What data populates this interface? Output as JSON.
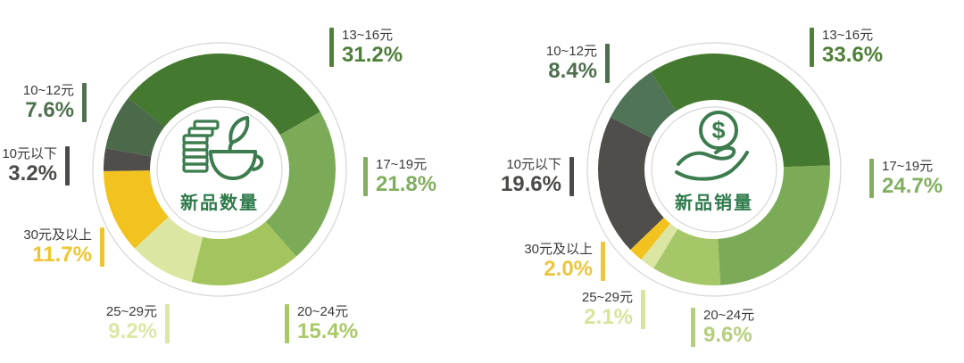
{
  "colors": {
    "background": "#ffffff",
    "ring_outline": "#d6d6d6",
    "icon_green": "#3C7C4E",
    "category_text": "#3A3A3A"
  },
  "chart_data": [
    {
      "type": "pie",
      "subtype": "donut",
      "title": "新品数量",
      "title_color": "#2E7A4B",
      "center_icon": "coins-teacup-icon",
      "direction": "clockwise",
      "start_angle_deg": -52,
      "unit": "percent",
      "segments": [
        {
          "label": "13~16元",
          "value_pct": 31.2,
          "display": "31.2%",
          "color": "#45792F",
          "label_color": "#4E8038"
        },
        {
          "label": "17~19元",
          "value_pct": 21.8,
          "display": "21.8%",
          "color": "#7CAB57",
          "label_color": "#82AF5F"
        },
        {
          "label": "20~24元",
          "value_pct": 15.4,
          "display": "15.4%",
          "color": "#A4C45E",
          "label_color": "#A9C966"
        },
        {
          "label": "25~29元",
          "value_pct": 9.2,
          "display": "9.2%",
          "color": "#DBE6A3",
          "label_color": "#DCE7A5"
        },
        {
          "label": "30元及以上",
          "value_pct": 11.7,
          "display": "11.7%",
          "color": "#F2C31E",
          "label_color": "#F0C52F"
        },
        {
          "label": "10元以下",
          "value_pct": 3.2,
          "display": "3.2%",
          "color": "#504E4B",
          "label_color": "#4C4B49"
        },
        {
          "label": "10~12元",
          "value_pct": 7.6,
          "display": "7.6%",
          "color": "#4B6A49",
          "label_color": "#50714F"
        }
      ]
    },
    {
      "type": "pie",
      "subtype": "donut",
      "title": "新品销量",
      "title_color": "#2E7A4B",
      "center_icon": "hand-coin-icon",
      "coin_symbol": "$",
      "direction": "clockwise",
      "start_angle_deg": -33,
      "unit": "percent",
      "segments": [
        {
          "label": "13~16元",
          "value_pct": 33.6,
          "display": "33.6%",
          "color": "#45792F",
          "label_color": "#4E8038"
        },
        {
          "label": "17~19元",
          "value_pct": 24.7,
          "display": "24.7%",
          "color": "#7CAB57",
          "label_color": "#82AF5F"
        },
        {
          "label": "20~24元",
          "value_pct": 9.6,
          "display": "9.6%",
          "color": "#A5C768",
          "label_color": "#B5CF7D"
        },
        {
          "label": "25~29元",
          "value_pct": 2.1,
          "display": "2.1%",
          "color": "#DBE6A3",
          "label_color": "#D8E49B"
        },
        {
          "label": "30元及以上",
          "value_pct": 2.0,
          "display": "2.0%",
          "color": "#F2C31E",
          "label_color": "#EEC63C"
        },
        {
          "label": "10元以下",
          "value_pct": 19.6,
          "display": "19.6%",
          "color": "#504E4B",
          "label_color": "#4B4A48"
        },
        {
          "label": "10~12元",
          "value_pct": 8.4,
          "display": "8.4%",
          "color": "#507457",
          "label_color": "#4D6F4D"
        }
      ]
    }
  ]
}
